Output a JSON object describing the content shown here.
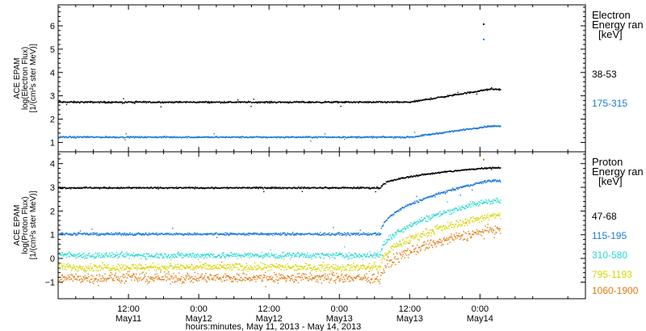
{
  "chart_data": [
    {
      "type": "scatter",
      "ylabel_lines": [
        "ACE EPAM",
        "log(Electron Flux)",
        "[1/(cm²s ster MeV)]"
      ],
      "ylim": [
        0.6,
        6.9
      ],
      "yticks": [
        1,
        2,
        3,
        4,
        5,
        6
      ],
      "legend_title": [
        "Electron",
        "Energy ran",
        "[keV]"
      ],
      "series": [
        {
          "name": "38-53",
          "color": "#000000",
          "level": 2.75,
          "end_level": 3.3,
          "noise": 0.05
        },
        {
          "name": "175-315",
          "color": "#1a7ad8",
          "level": 1.25,
          "end_level": 1.72,
          "noise": 0.05
        }
      ],
      "outliers": [
        {
          "series": "38-53",
          "x": 72.5,
          "y": 6.1
        },
        {
          "series": "175-315",
          "x": 72.5,
          "y": 5.45
        }
      ]
    },
    {
      "type": "scatter",
      "ylabel_lines": [
        "ACE EPAM",
        "log(Proton Flux)",
        "[1/(cm²s ster MeV)]"
      ],
      "ylim": [
        -1.7,
        4.5
      ],
      "yticks": [
        -1,
        0,
        1,
        2,
        3,
        4
      ],
      "legend_title": [
        "Proton",
        "Energy ran",
        "[keV]"
      ],
      "series": [
        {
          "name": "47-68",
          "color": "#000000",
          "level": 3.0,
          "end_level": 3.85,
          "noise": 0.05
        },
        {
          "name": "115-195",
          "color": "#1a7ad8",
          "level": 1.05,
          "end_level": 3.3,
          "noise": 0.08
        },
        {
          "name": "310-580",
          "color": "#2ad8d0",
          "level": 0.15,
          "end_level": 2.45,
          "noise": 0.12
        },
        {
          "name": "795-1193",
          "color": "#d4d400",
          "level": -0.35,
          "end_level": 1.8,
          "noise": 0.15
        },
        {
          "name": "1060-1900",
          "color": "#e07a10",
          "level": -0.8,
          "end_level": 1.2,
          "noise": 0.2
        }
      ],
      "outliers": [
        {
          "series": "1060-1900",
          "x": 72.5,
          "y": 4.2
        }
      ]
    }
  ],
  "x_axis": {
    "start_hours": 0,
    "end_hours": 90,
    "ticks": [
      {
        "hours": 12,
        "time": "12:00",
        "date": "May11"
      },
      {
        "hours": 24,
        "time": "0:00",
        "date": "May12"
      },
      {
        "hours": 36,
        "time": "12:00",
        "date": "May12"
      },
      {
        "hours": 48,
        "time": "0:00",
        "date": "May13"
      },
      {
        "hours": 60,
        "time": "12:00",
        "date": "May13"
      },
      {
        "hours": 72,
        "time": "0:00",
        "date": "May14"
      }
    ],
    "data_end_hours": 75.5,
    "title": "hours:minutes, May 11, 2013 - May 14, 2013"
  }
}
